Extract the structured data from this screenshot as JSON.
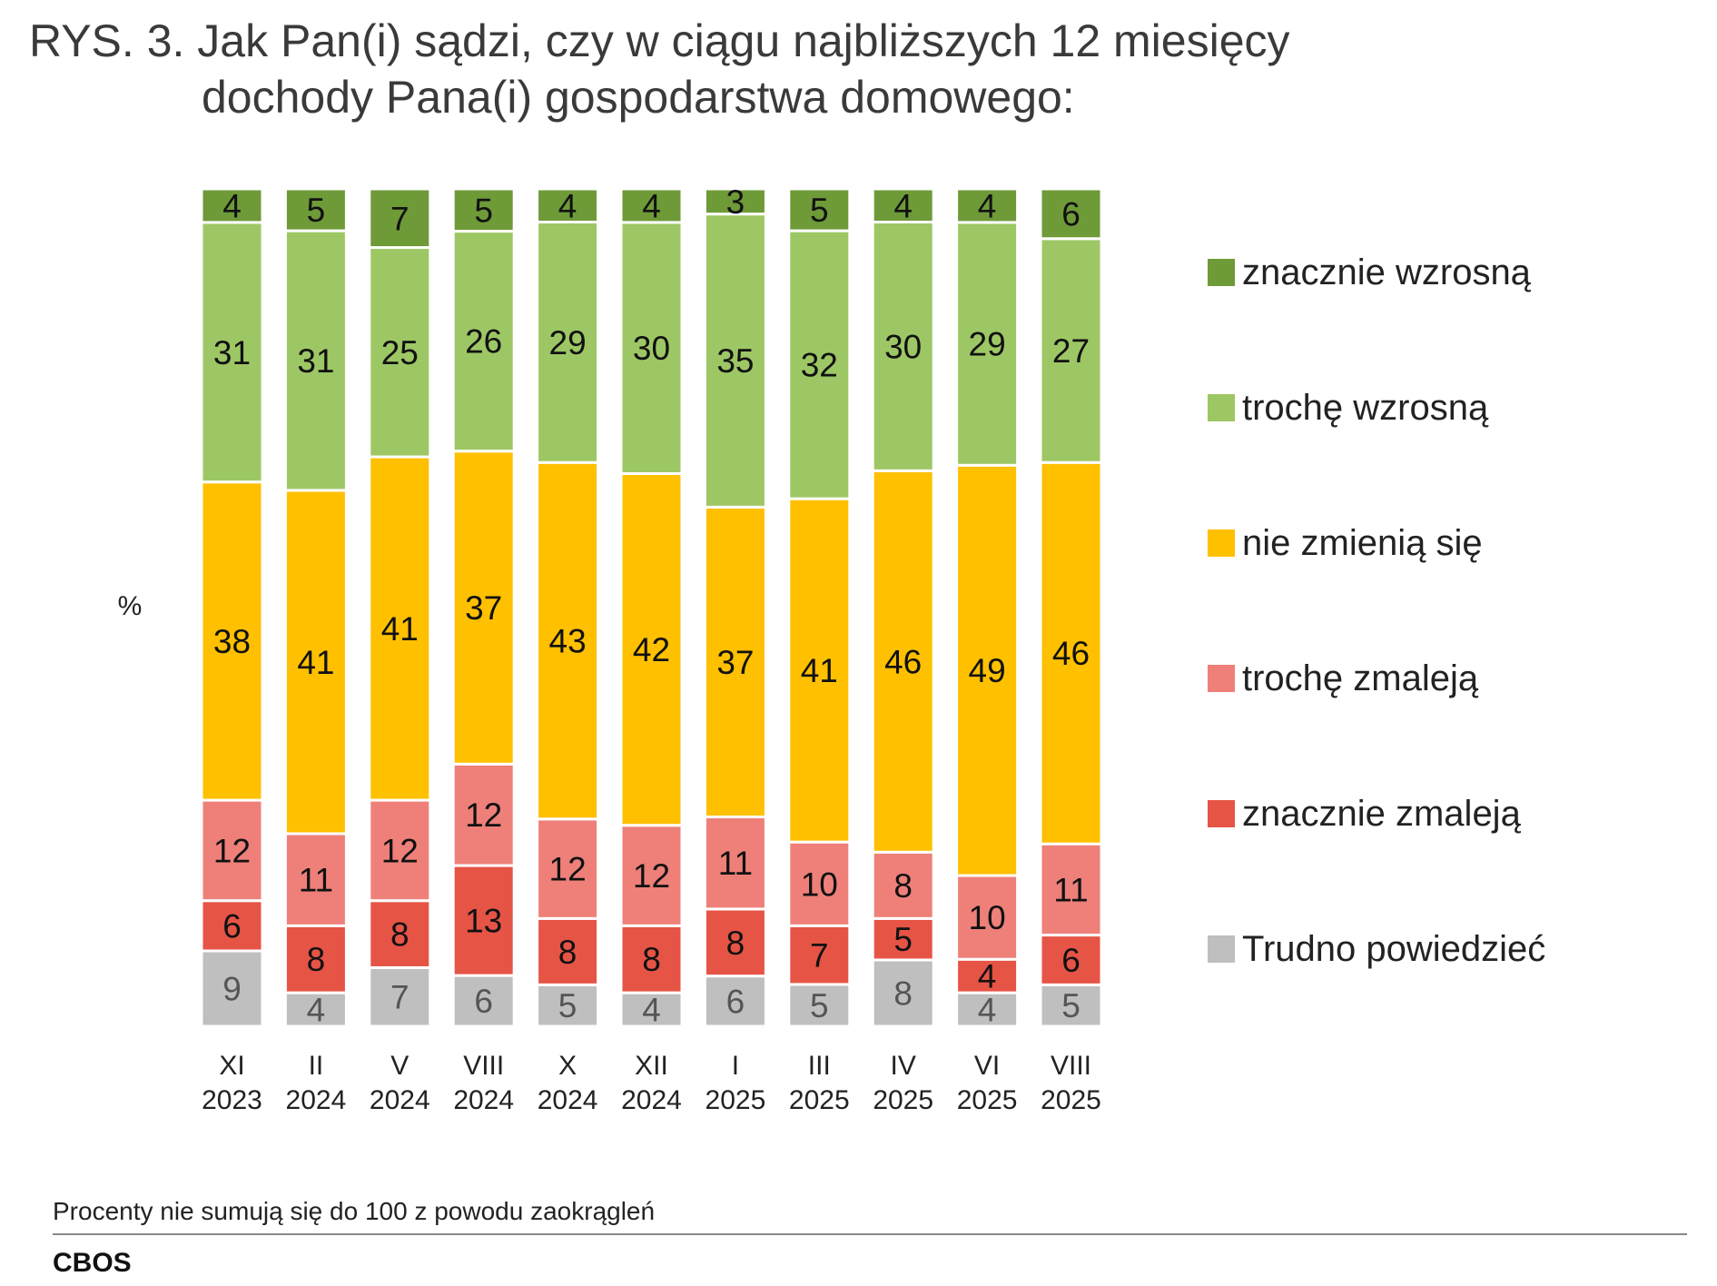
{
  "title": {
    "line1": "RYS. 3. Jak Pan(i) sądzi, czy w ciągu najbliższych 12 miesięcy",
    "line2": "dochody Pana(i) gospodarstwa domowego:"
  },
  "footnote": "Procenty nie sumują się do 100 z powodu zaokrągleń",
  "brand": "CBOS",
  "chart_data": {
    "type": "bar",
    "stacked": true,
    "ylabel": "%",
    "ylim": [
      0,
      100
    ],
    "grid": false,
    "legend_position": "right",
    "categories": [
      [
        "XI",
        "2023"
      ],
      [
        "II",
        "2024"
      ],
      [
        "V",
        "2024"
      ],
      [
        "VIII",
        "2024"
      ],
      [
        "X",
        "2024"
      ],
      [
        "XII",
        "2024"
      ],
      [
        "I",
        "2025"
      ],
      [
        "III",
        "2025"
      ],
      [
        "IV",
        "2025"
      ],
      [
        "VI",
        "2025"
      ],
      [
        "VIII",
        "2025"
      ]
    ],
    "series": [
      {
        "name": "Trudno powiedzieć",
        "color": "#BFBFBF",
        "label_color": "#555555",
        "values": [
          9,
          4,
          7,
          6,
          5,
          4,
          6,
          5,
          8,
          4,
          5
        ]
      },
      {
        "name": "znacznie zmaleją",
        "color": "#E65446",
        "label_color": "#111111",
        "values": [
          6,
          8,
          8,
          13,
          8,
          8,
          8,
          7,
          5,
          4,
          6
        ]
      },
      {
        "name": "trochę zmaleją",
        "color": "#EE8079",
        "label_color": "#111111",
        "values": [
          12,
          11,
          12,
          12,
          12,
          12,
          11,
          10,
          8,
          10,
          11
        ]
      },
      {
        "name": "nie zmienią się",
        "color": "#FFC000",
        "label_color": "#111111",
        "values": [
          38,
          41,
          41,
          37,
          43,
          42,
          37,
          41,
          46,
          49,
          46
        ]
      },
      {
        "name": "trochę wzrosną",
        "color": "#9DC764",
        "label_color": "#111111",
        "values": [
          31,
          31,
          25,
          26,
          29,
          30,
          35,
          32,
          30,
          29,
          27
        ]
      },
      {
        "name": "znacznie wzrosną",
        "color": "#6E9A38",
        "label_color": "#111111",
        "values": [
          4,
          5,
          7,
          5,
          4,
          4,
          3,
          5,
          4,
          4,
          6
        ]
      }
    ],
    "legend_order": [
      "znacznie wzrosną",
      "trochę wzrosną",
      "nie zmienią się",
      "trochę zmaleją",
      "znacznie zmaleją",
      "Trudno powiedzieć"
    ]
  }
}
